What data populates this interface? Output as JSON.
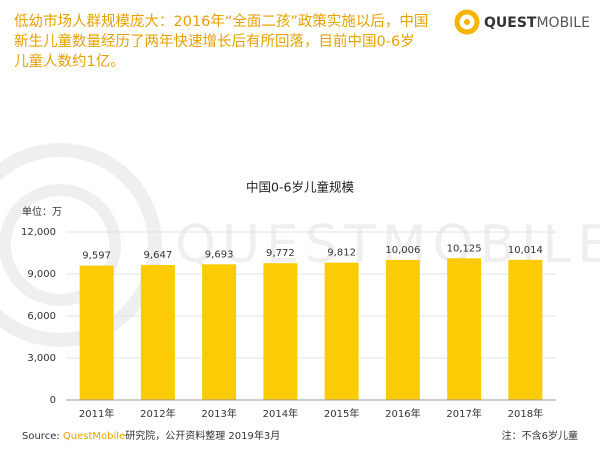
{
  "header": {
    "headline_lines": [
      "低幼市场人群规模庞大：2016年“全面二孩”政策实施以后，中国",
      "新生儿童数量经历了两年快速增长后有所回落，目前中国0-6岁",
      "儿童人数约1亿。"
    ],
    "logo": {
      "bold": "QUEST",
      "light": "MOBILE"
    }
  },
  "chart_data": {
    "type": "bar",
    "title": "中国0-6岁儿童规模",
    "unit": "单位：万",
    "categories": [
      "2011年",
      "2012年",
      "2013年",
      "2014年",
      "2015年",
      "2016年",
      "2017年",
      "2018年"
    ],
    "values": [
      9597,
      9647,
      9693,
      9772,
      9812,
      10006,
      10125,
      10014
    ],
    "value_labels": [
      "9,597",
      "9,647",
      "9,693",
      "9,772",
      "9,812",
      "10,006",
      "10,125",
      "10,014"
    ],
    "color": "#fbcb05",
    "ylim": [
      0,
      12000
    ],
    "yticks": [
      0,
      {
        "value": 3000,
        "label": "3,000"
      },
      {
        "value": 6000,
        "label": "6,000"
      },
      {
        "value": 9000,
        "label": "9,000"
      },
      {
        "value": 12000,
        "label": "12,000"
      }
    ],
    "grid": true
  },
  "footer": {
    "source_label": "Source:",
    "source_org": "QuestMobile",
    "source_rest": "研究院，公开资料整理 2019年3月",
    "note": "注：不含6岁儿童"
  }
}
